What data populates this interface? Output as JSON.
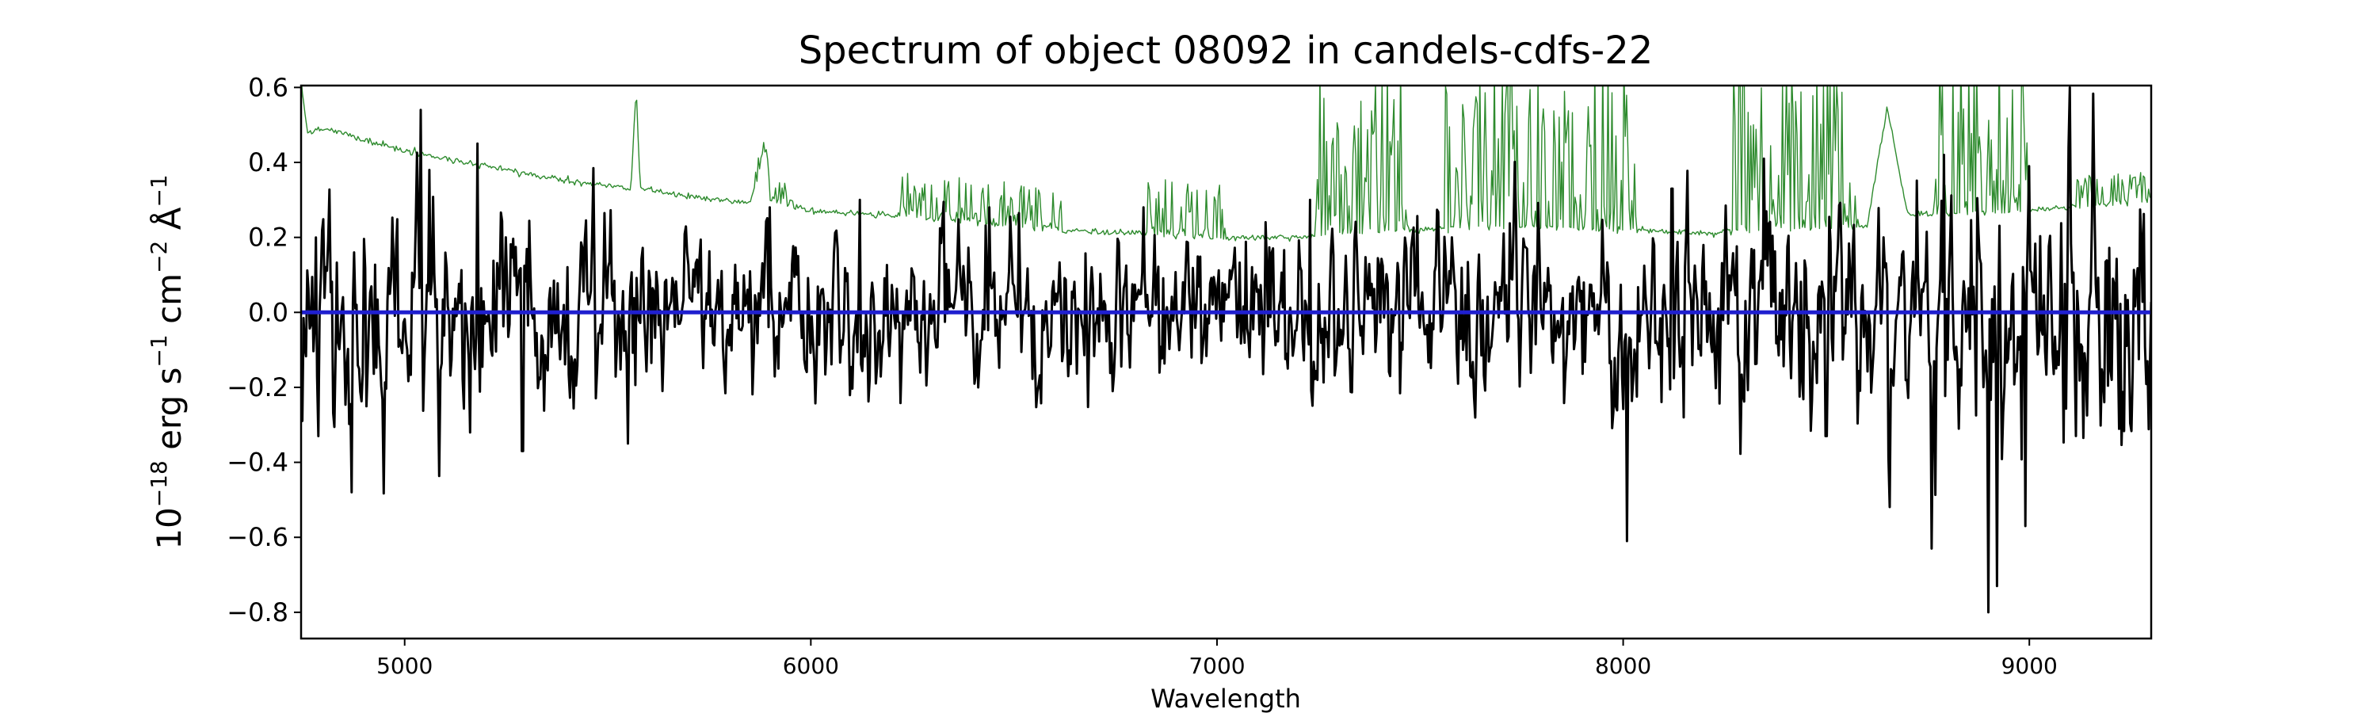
{
  "chart_data": {
    "type": "line",
    "title": "Spectrum of object 08092 in candels-cdfs-22",
    "xlabel": "Wavelength",
    "ylabel_parts": {
      "base": "10",
      "exp1": "−18",
      "erg": " erg s",
      "exp2": "−1",
      "cm": " cm",
      "exp3": "−2",
      "ang": " Å",
      "exp4": "−1"
    },
    "xlim": [
      4745,
      9300
    ],
    "ylim": [
      -0.87,
      0.605
    ],
    "x_ticks": [
      5000,
      6000,
      7000,
      8000,
      9000
    ],
    "y_ticks": [
      {
        "v": 0.6,
        "label": "0.6"
      },
      {
        "v": 0.4,
        "label": "0.4"
      },
      {
        "v": 0.2,
        "label": "0.2"
      },
      {
        "v": 0.0,
        "label": "0.0"
      },
      {
        "v": -0.2,
        "label": "−0.2"
      },
      {
        "v": -0.4,
        "label": "−0.4"
      },
      {
        "v": -0.6,
        "label": "−0.6"
      },
      {
        "v": -0.8,
        "label": "−0.8"
      }
    ],
    "series": [
      {
        "role": "error",
        "color": "#2e8b2e",
        "anchors": [
          [
            4745,
            0.62
          ],
          [
            4760,
            0.48
          ],
          [
            4800,
            0.49
          ],
          [
            4850,
            0.48
          ],
          [
            4900,
            0.46
          ],
          [
            5000,
            0.43
          ],
          [
            5200,
            0.39
          ],
          [
            5400,
            0.35
          ],
          [
            5557,
            0.33
          ],
          [
            5570,
            0.6
          ],
          [
            5580,
            0.33
          ],
          [
            5700,
            0.31
          ],
          [
            5850,
            0.29
          ],
          [
            5889,
            0.43
          ],
          [
            5895,
            0.4
          ],
          [
            5900,
            0.3
          ],
          [
            6000,
            0.27
          ],
          [
            6200,
            0.26
          ],
          [
            6400,
            0.24
          ],
          [
            6600,
            0.22
          ],
          [
            6800,
            0.21
          ],
          [
            7000,
            0.2
          ],
          [
            7200,
            0.2
          ],
          [
            7300,
            0.21
          ],
          [
            7500,
            0.22
          ],
          [
            7700,
            0.23
          ],
          [
            8000,
            0.22
          ],
          [
            8200,
            0.21
          ],
          [
            8300,
            0.22
          ],
          [
            8600,
            0.23
          ],
          [
            8650,
            0.55
          ],
          [
            8700,
            0.26
          ],
          [
            9000,
            0.27
          ],
          [
            9300,
            0.3
          ]
        ],
        "forest_regions": [
          [
            5860,
            5960,
            0.06
          ],
          [
            6220,
            6620,
            0.12
          ],
          [
            6830,
            7020,
            0.15
          ],
          [
            7240,
            7480,
            0.45
          ],
          [
            7560,
            8050,
            0.45
          ],
          [
            8270,
            8580,
            0.45
          ],
          [
            8760,
            9000,
            0.45
          ],
          [
            9100,
            9300,
            0.08
          ]
        ]
      },
      {
        "role": "flux",
        "color": "#000000",
        "noise_model": {
          "seed": 8092,
          "n_points": 1500,
          "sigma_anchors": [
            [
              4745,
              0.16
            ],
            [
              5000,
              0.14
            ],
            [
              5500,
              0.11
            ],
            [
              6000,
              0.1
            ],
            [
              6500,
              0.1
            ],
            [
              7000,
              0.1
            ],
            [
              7300,
              0.11
            ],
            [
              7600,
              0.12
            ],
            [
              8000,
              0.13
            ],
            [
              8500,
              0.15
            ],
            [
              9000,
              0.17
            ],
            [
              9300,
              0.18
            ]
          ]
        },
        "features": [
          [
            4788,
            -0.33
          ],
          [
            4870,
            -0.48
          ],
          [
            5040,
            0.54
          ],
          [
            5060,
            0.38
          ],
          [
            5180,
            0.45
          ],
          [
            5290,
            -0.37
          ],
          [
            5550,
            -0.35
          ],
          [
            5900,
            0.28
          ],
          [
            6120,
            0.3
          ],
          [
            6440,
            0.28
          ],
          [
            6820,
            0.28
          ],
          [
            7230,
            0.3
          ],
          [
            8010,
            -0.61
          ],
          [
            8120,
            0.33
          ],
          [
            8500,
            -0.33
          ],
          [
            8760,
            -0.63
          ],
          [
            8790,
            0.42
          ],
          [
            8900,
            -0.8
          ],
          [
            8920,
            -0.73
          ],
          [
            8990,
            -0.57
          ],
          [
            9000,
            0.39
          ]
        ]
      },
      {
        "role": "model",
        "color": "#1f1fcf",
        "x": [
          4745,
          9300
        ],
        "y": [
          0.0,
          0.0
        ]
      }
    ],
    "grid": false,
    "legend": "none"
  }
}
